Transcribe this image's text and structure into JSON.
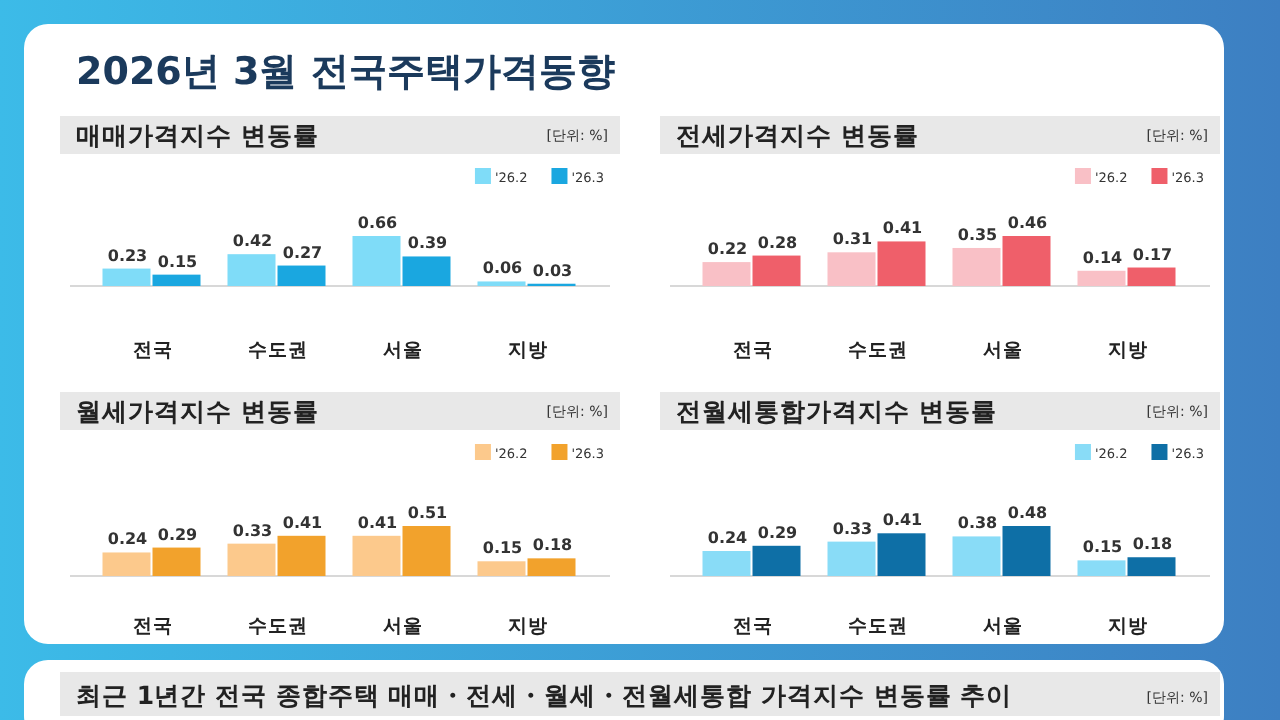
{
  "chart_data": [
    {
      "type": "other",
      "title": "2026년 3월 전국주택가격동향"
    },
    {
      "type": "bar",
      "title": "매매가격지수 변동률",
      "annotations": [
        "[단위: %]"
      ],
      "categories": [
        "전국",
        "수도권",
        "서울",
        "지방"
      ],
      "legend": "top right",
      "data_labels": true,
      "series": [
        {
          "name": "'26.2",
          "color": "#7fdcf8",
          "values": [
            0.23,
            0.42,
            0.66,
            0.06
          ]
        },
        {
          "name": "'26.3",
          "color": "#1aa7e0",
          "values": [
            0.15,
            0.27,
            0.39,
            0.03
          ]
        }
      ]
    },
    {
      "type": "bar",
      "title": "전세가격지수 변동률",
      "annotations": [
        "[단위: %]"
      ],
      "categories": [
        "전국",
        "수도권",
        "서울",
        "지방"
      ],
      "legend": "top right",
      "data_labels": true,
      "series": [
        {
          "name": "'26.2",
          "color": "#f9c0c6",
          "values": [
            0.22,
            0.31,
            0.35,
            0.14
          ]
        },
        {
          "name": "'26.3",
          "color": "#ef5f6a",
          "values": [
            0.28,
            0.41,
            0.46,
            0.17
          ]
        }
      ]
    },
    {
      "type": "bar",
      "title": "월세가격지수 변동률",
      "annotations": [
        "[단위: %]"
      ],
      "categories": [
        "전국",
        "수도권",
        "서울",
        "지방"
      ],
      "legend": "top right",
      "data_labels": true,
      "series": [
        {
          "name": "'26.2",
          "color": "#fcc98c",
          "values": [
            0.24,
            0.33,
            0.41,
            0.15
          ]
        },
        {
          "name": "'26.3",
          "color": "#f2a22c",
          "values": [
            0.29,
            0.41,
            0.51,
            0.18
          ]
        }
      ]
    },
    {
      "type": "bar",
      "title": "전월세통합가격지수 변동률",
      "annotations": [
        "[단위: %]"
      ],
      "categories": [
        "전국",
        "수도권",
        "서울",
        "지방"
      ],
      "legend": "top right",
      "data_labels": true,
      "series": [
        {
          "name": "'26.2",
          "color": "#89dcf7",
          "values": [
            0.24,
            0.33,
            0.38,
            0.15
          ]
        },
        {
          "name": "'26.3",
          "color": "#0e6fa6",
          "values": [
            0.29,
            0.41,
            0.48,
            0.18
          ]
        }
      ]
    },
    {
      "type": "other",
      "title": "최근 1년간 전국 종합주택 매매・전세・월세・전월세통합 가격지수 변동률 추이",
      "annotations": [
        "[단위: %]"
      ]
    }
  ]
}
